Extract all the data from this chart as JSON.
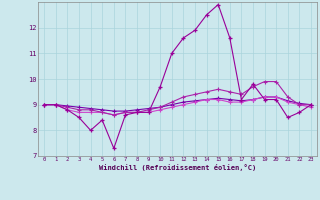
{
  "xlabel": "Windchill (Refroidissement éolien,°C)",
  "background_color": "#cce8ed",
  "x": [
    0,
    1,
    2,
    3,
    4,
    5,
    6,
    7,
    8,
    9,
    10,
    11,
    12,
    13,
    14,
    15,
    16,
    17,
    18,
    19,
    20,
    21,
    22,
    23
  ],
  "line1": [
    9.0,
    9.0,
    8.8,
    8.5,
    8.0,
    8.4,
    7.3,
    8.6,
    8.7,
    8.7,
    9.7,
    11.0,
    11.6,
    11.9,
    12.5,
    12.9,
    11.6,
    9.2,
    9.8,
    9.2,
    9.2,
    8.5,
    8.7,
    9.0
  ],
  "line2": [
    9.0,
    9.0,
    8.8,
    8.7,
    8.7,
    8.7,
    8.6,
    8.7,
    8.7,
    8.7,
    8.8,
    8.9,
    9.0,
    9.1,
    9.2,
    9.2,
    9.1,
    9.1,
    9.2,
    9.3,
    9.3,
    9.1,
    9.0,
    8.9
  ],
  "line3": [
    9.0,
    9.0,
    8.9,
    8.8,
    8.8,
    8.7,
    8.6,
    8.7,
    8.7,
    8.8,
    8.9,
    9.1,
    9.3,
    9.4,
    9.5,
    9.6,
    9.5,
    9.4,
    9.7,
    9.9,
    9.9,
    9.3,
    9.0,
    9.0
  ],
  "line4": [
    9.0,
    9.0,
    8.95,
    8.9,
    8.85,
    8.8,
    8.75,
    8.75,
    8.8,
    8.85,
    8.9,
    9.0,
    9.1,
    9.15,
    9.2,
    9.25,
    9.2,
    9.15,
    9.2,
    9.3,
    9.3,
    9.15,
    9.05,
    9.0
  ],
  "ylim": [
    7,
    13
  ],
  "xlim": [
    -0.5,
    23.5
  ],
  "yticks": [
    7,
    8,
    9,
    10,
    11,
    12
  ],
  "xticks": [
    0,
    1,
    2,
    3,
    4,
    5,
    6,
    7,
    8,
    9,
    10,
    11,
    12,
    13,
    14,
    15,
    16,
    17,
    18,
    19,
    20,
    21,
    22,
    23
  ],
  "line_color1": "#990099",
  "line_color2": "#cc44cc",
  "line_color3": "#aa22aa",
  "line_color4": "#7700aa",
  "grid_color": "#aad4dc"
}
